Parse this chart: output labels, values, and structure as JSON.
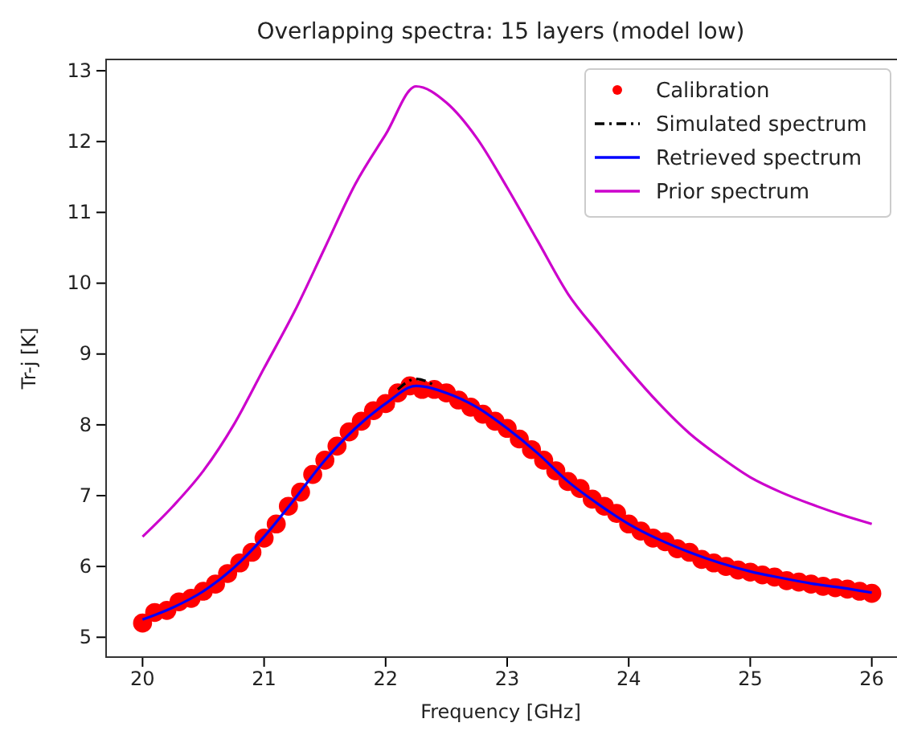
{
  "chart_data": {
    "type": "line",
    "title": "Overlapping spectra: 15 layers (model low)",
    "xlabel": "Frequency [GHz]",
    "ylabel": "Tr-j [K]",
    "xlim": [
      19.7,
      26.3
    ],
    "ylim": [
      4.72,
      13.16
    ],
    "xticks": [
      20,
      21,
      22,
      23,
      24,
      25,
      26
    ],
    "yticks": [
      5,
      6,
      7,
      8,
      9,
      10,
      11,
      12,
      13
    ],
    "grid": false,
    "legend": "top right",
    "series": [
      {
        "name": "Calibration",
        "type": "scatter",
        "marker": "circle",
        "color": "#ff0000",
        "x": [
          20.0,
          20.1,
          20.2,
          20.3,
          20.4,
          20.5,
          20.6,
          20.7,
          20.8,
          20.9,
          21.0,
          21.1,
          21.2,
          21.3,
          21.4,
          21.5,
          21.6,
          21.7,
          21.8,
          21.9,
          22.0,
          22.1,
          22.2,
          22.3,
          22.4,
          22.5,
          22.6,
          22.7,
          22.8,
          22.9,
          23.0,
          23.1,
          23.2,
          23.3,
          23.4,
          23.5,
          23.6,
          23.7,
          23.8,
          23.9,
          24.0,
          24.1,
          24.2,
          24.3,
          24.4,
          24.5,
          24.6,
          24.7,
          24.8,
          24.9,
          25.0,
          25.1,
          25.2,
          25.3,
          25.4,
          25.5,
          25.6,
          25.7,
          25.8,
          25.9,
          26.0
        ],
        "values": [
          5.2,
          5.35,
          5.38,
          5.5,
          5.55,
          5.65,
          5.75,
          5.9,
          6.05,
          6.2,
          6.4,
          6.6,
          6.85,
          7.05,
          7.3,
          7.5,
          7.7,
          7.9,
          8.05,
          8.2,
          8.3,
          8.45,
          8.55,
          8.5,
          8.5,
          8.45,
          8.35,
          8.25,
          8.15,
          8.05,
          7.95,
          7.8,
          7.65,
          7.5,
          7.35,
          7.2,
          7.1,
          6.95,
          6.85,
          6.75,
          6.6,
          6.5,
          6.4,
          6.35,
          6.25,
          6.2,
          6.1,
          6.05,
          6.0,
          5.95,
          5.92,
          5.88,
          5.85,
          5.8,
          5.78,
          5.75,
          5.72,
          5.7,
          5.68,
          5.65,
          5.62
        ]
      },
      {
        "name": "Simulated spectrum",
        "line_style": "dashdot",
        "color": "#000000",
        "x": [
          22.1,
          22.25,
          22.4
        ],
        "values": [
          8.5,
          8.65,
          8.56
        ]
      },
      {
        "name": "Retrieved spectrum",
        "line_style": "solid",
        "color": "#0000ff",
        "x": [
          20,
          20.25,
          20.5,
          20.75,
          21,
          21.25,
          21.5,
          21.75,
          22,
          22.25,
          22.5,
          22.75,
          23,
          23.25,
          23.5,
          23.75,
          24,
          24.25,
          24.5,
          24.75,
          25,
          25.25,
          25.5,
          25.75,
          26
        ],
        "values": [
          5.25,
          5.42,
          5.65,
          5.98,
          6.42,
          6.95,
          7.5,
          7.95,
          8.3,
          8.55,
          8.45,
          8.25,
          7.95,
          7.6,
          7.2,
          6.88,
          6.6,
          6.38,
          6.2,
          6.05,
          5.93,
          5.84,
          5.76,
          5.7,
          5.63
        ]
      },
      {
        "name": "Prior spectrum",
        "line_style": "solid",
        "color": "#cc00cc",
        "x": [
          20,
          20.25,
          20.5,
          20.75,
          21,
          21.25,
          21.5,
          21.75,
          22,
          22.25,
          22.5,
          22.75,
          23,
          23.25,
          23.5,
          23.75,
          24,
          24.25,
          24.5,
          24.75,
          25,
          25.25,
          25.5,
          25.75,
          26
        ],
        "values": [
          6.42,
          6.85,
          7.35,
          8.0,
          8.8,
          9.6,
          10.5,
          11.4,
          12.1,
          12.78,
          12.55,
          12.05,
          11.35,
          10.6,
          9.85,
          9.3,
          8.78,
          8.3,
          7.88,
          7.55,
          7.26,
          7.05,
          6.88,
          6.73,
          6.6
        ]
      }
    ]
  }
}
